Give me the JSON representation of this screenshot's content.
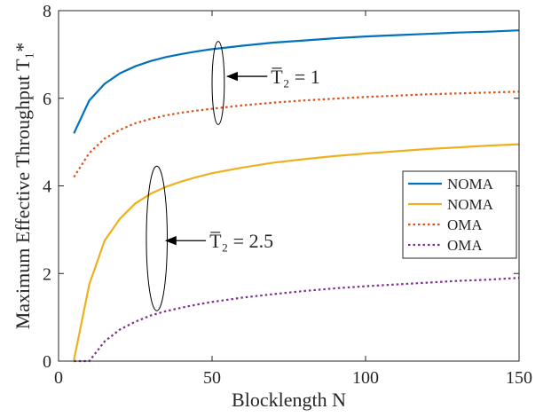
{
  "chart_data": {
    "type": "line",
    "xlabel": "Blocklength N",
    "ylabel": "Maximum Effective Throughput T₁*",
    "xlim": [
      0,
      150
    ],
    "ylim": [
      0,
      8
    ],
    "x_ticks": [
      "0",
      "50",
      "100",
      "150"
    ],
    "y_ticks": [
      "0",
      "2",
      "4",
      "6",
      "8"
    ],
    "grid": false,
    "legend_position": "right",
    "colors": {
      "blue": "#0072BD",
      "orange": "#EDB120",
      "red": "#D95319",
      "purple": "#7E2F8E",
      "axis": "#262626"
    },
    "series": [
      {
        "name": "NOMA",
        "color": "#0072BD",
        "style": "solid",
        "x": [
          5,
          10,
          15,
          20,
          25,
          30,
          35,
          40,
          45,
          50,
          60,
          70,
          80,
          90,
          100,
          110,
          120,
          130,
          140,
          150
        ],
        "y": [
          5.2,
          5.95,
          6.33,
          6.57,
          6.73,
          6.85,
          6.94,
          7.01,
          7.07,
          7.12,
          7.2,
          7.27,
          7.32,
          7.37,
          7.41,
          7.44,
          7.47,
          7.5,
          7.52,
          7.55
        ]
      },
      {
        "name": "NOMA",
        "color": "#EDB120",
        "style": "solid",
        "x": [
          5,
          10,
          15,
          20,
          25,
          30,
          35,
          40,
          45,
          50,
          60,
          70,
          80,
          90,
          100,
          110,
          120,
          130,
          140,
          150
        ],
        "y": [
          0.02,
          1.75,
          2.75,
          3.25,
          3.6,
          3.82,
          3.98,
          4.1,
          4.2,
          4.29,
          4.42,
          4.53,
          4.61,
          4.68,
          4.74,
          4.79,
          4.84,
          4.88,
          4.92,
          4.95
        ]
      },
      {
        "name": "OMA",
        "color": "#D95319",
        "style": "dotted",
        "x": [
          5,
          10,
          15,
          20,
          25,
          30,
          35,
          40,
          45,
          50,
          60,
          70,
          80,
          90,
          100,
          110,
          120,
          130,
          140,
          150
        ],
        "y": [
          4.2,
          4.75,
          5.08,
          5.28,
          5.43,
          5.53,
          5.61,
          5.67,
          5.72,
          5.76,
          5.84,
          5.9,
          5.95,
          5.99,
          6.03,
          6.06,
          6.09,
          6.11,
          6.13,
          6.15
        ]
      },
      {
        "name": "OMA",
        "color": "#7E2F8E",
        "style": "dotted",
        "x": [
          5,
          10,
          15,
          20,
          25,
          30,
          35,
          40,
          45,
          50,
          60,
          70,
          80,
          90,
          100,
          110,
          120,
          130,
          140,
          150
        ],
        "y": [
          0,
          0,
          0.45,
          0.72,
          0.9,
          1.04,
          1.14,
          1.22,
          1.29,
          1.35,
          1.45,
          1.53,
          1.6,
          1.66,
          1.71,
          1.75,
          1.79,
          1.83,
          1.86,
          1.9
        ]
      }
    ],
    "annotations": [
      {
        "label": "T̅₂ = 1",
        "ellipse_center": [
          52,
          6.35
        ],
        "ellipse_r": [
          2,
          0.95
        ],
        "arrow_from": [
          68,
          6.5
        ],
        "arrow_to": [
          55,
          6.5
        ]
      },
      {
        "label": "T̅₂ = 2.5",
        "ellipse_center": [
          32,
          2.8
        ],
        "ellipse_r": [
          3.4,
          1.65
        ],
        "arrow_from": [
          48,
          2.75
        ],
        "arrow_to": [
          35,
          2.75
        ]
      }
    ]
  }
}
